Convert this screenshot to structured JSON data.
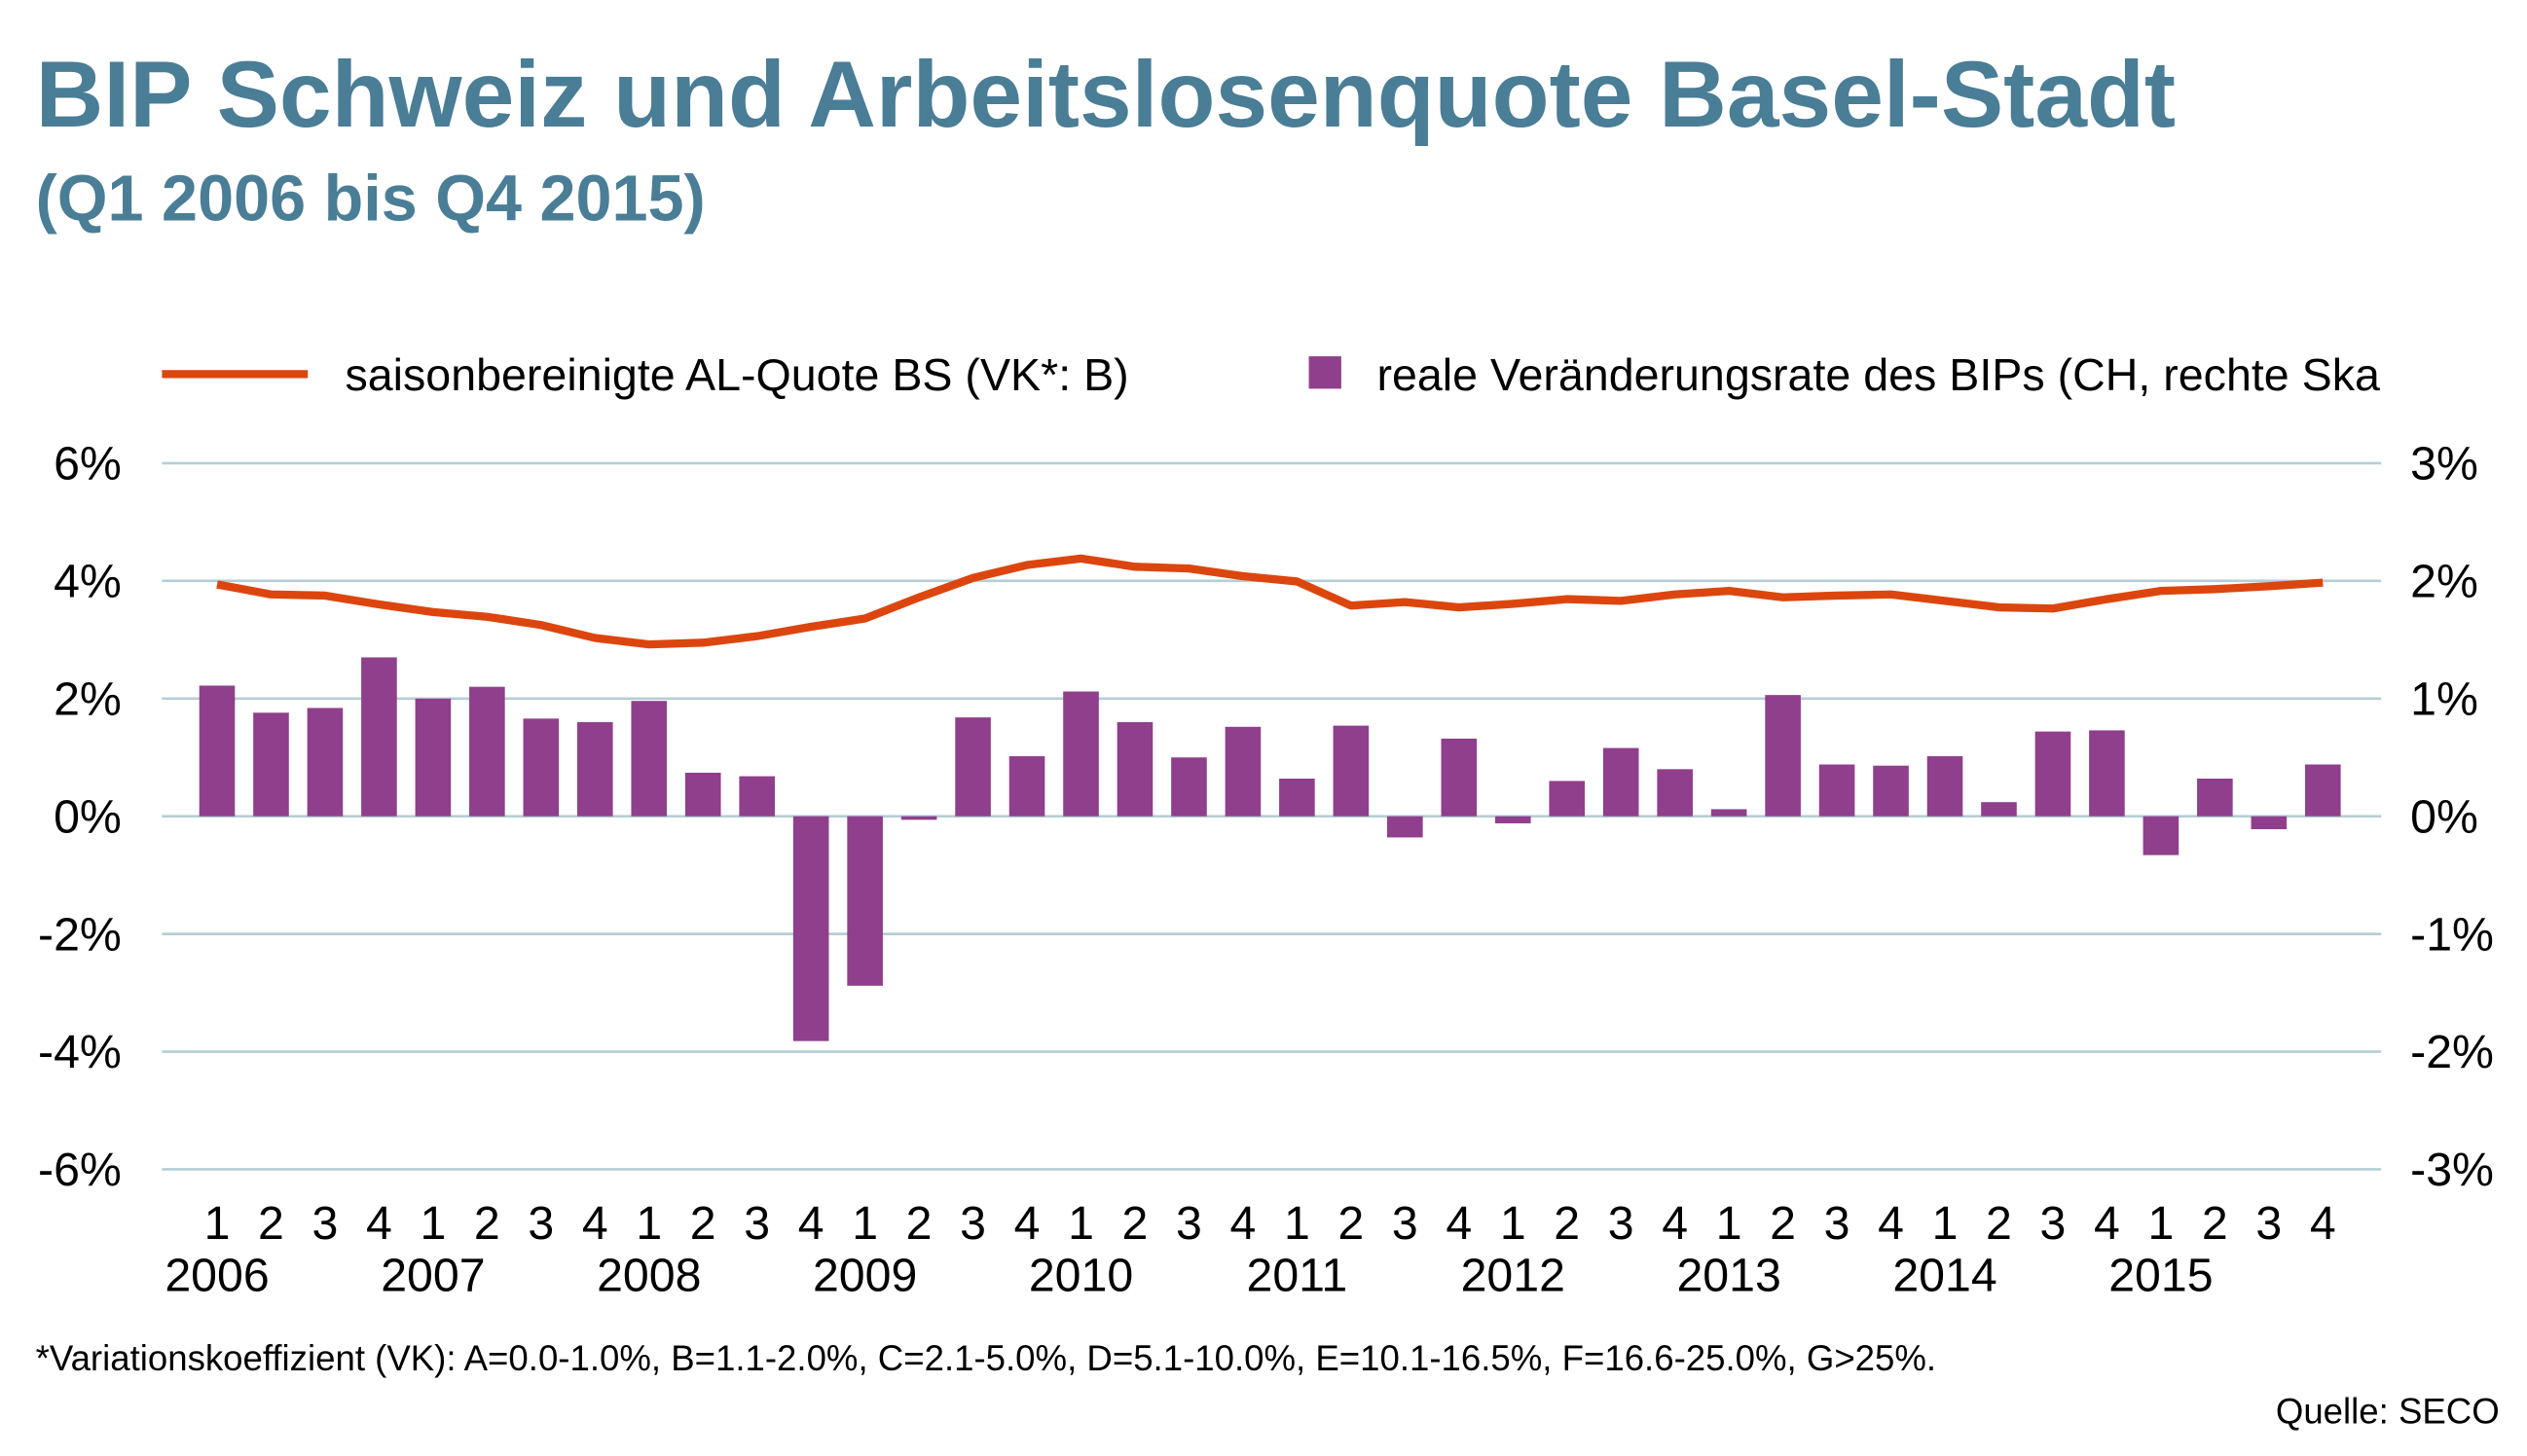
{
  "title": "BIP Schweiz und Arbeitslosenquote Basel-Stadt",
  "subtitle": "(Q1 2006 bis Q4 2015)",
  "legend": {
    "line_label": "saisonbereinigte AL-Quote BS (VK*: B)",
    "bar_label": "reale Veränderungsrate des BIPs (CH, rechte Ska"
  },
  "footnote": "*Variationskoeffizient (VK): A=0.0-1.0%, B=1.1-2.0%, C=2.1-5.0%, D=5.1-10.0%, E=10.1-16.5%, F=16.6-25.0%, G>25%.",
  "source": "Quelle: SECO",
  "colors": {
    "title": "#4a7d96",
    "line": "#dc460e",
    "bars": "#8f3f8b",
    "grid": "#b5ced6"
  },
  "chart_data": {
    "type": "bar+line",
    "left_axis": {
      "range": [
        -6,
        6
      ],
      "ticks": [
        "6%",
        "4%",
        "2%",
        "0%",
        "-2%",
        "-4%",
        "-6%"
      ],
      "tick_values": [
        6,
        4,
        2,
        0,
        -2,
        -4,
        -6
      ]
    },
    "right_axis": {
      "range": [
        -3,
        3
      ],
      "ticks": [
        "3%",
        "2%",
        "1%",
        "0%",
        "-1%",
        "-2%",
        "-3%"
      ]
    },
    "quarters": [
      "1",
      "2",
      "3",
      "4",
      "1",
      "2",
      "3",
      "4",
      "1",
      "2",
      "3",
      "4",
      "1",
      "2",
      "3",
      "4",
      "1",
      "2",
      "3",
      "4",
      "1",
      "2",
      "3",
      "4",
      "1",
      "2",
      "3",
      "4",
      "1",
      "2",
      "3",
      "4",
      "1",
      "2",
      "3",
      "4",
      "1",
      "2",
      "3",
      "4"
    ],
    "years": [
      "2006",
      "2007",
      "2008",
      "2009",
      "2010",
      "2011",
      "2012",
      "2013",
      "2014",
      "2015"
    ],
    "grid": true,
    "legend_position": "top",
    "series": [
      {
        "name": "saisonbereinigte AL-Quote BS (VK*: B)",
        "type": "line",
        "axis": "left",
        "values": [
          3.94,
          3.77,
          3.75,
          3.6,
          3.47,
          3.39,
          3.25,
          3.03,
          2.92,
          2.95,
          3.06,
          3.22,
          3.36,
          3.72,
          4.05,
          4.27,
          4.38,
          4.24,
          4.21,
          4.08,
          3.99,
          3.58,
          3.64,
          3.55,
          3.61,
          3.69,
          3.66,
          3.77,
          3.83,
          3.72,
          3.75,
          3.77,
          3.66,
          3.55,
          3.53,
          3.69,
          3.83,
          3.86,
          3.91,
          3.97
        ]
      },
      {
        "name": "reale Veränderungsrate des BIPs (CH, rechte Skala)",
        "type": "bar",
        "axis": "right",
        "values": [
          1.11,
          0.88,
          0.92,
          1.35,
          1.0,
          1.1,
          0.83,
          0.8,
          0.98,
          0.37,
          0.34,
          -1.91,
          -1.44,
          -0.03,
          0.84,
          0.51,
          1.06,
          0.8,
          0.5,
          0.76,
          0.32,
          0.77,
          -0.18,
          0.66,
          -0.06,
          0.3,
          0.58,
          0.4,
          0.06,
          1.03,
          0.44,
          0.43,
          0.51,
          0.12,
          0.72,
          0.73,
          -0.33,
          0.32,
          -0.11,
          0.44
        ]
      }
    ]
  }
}
